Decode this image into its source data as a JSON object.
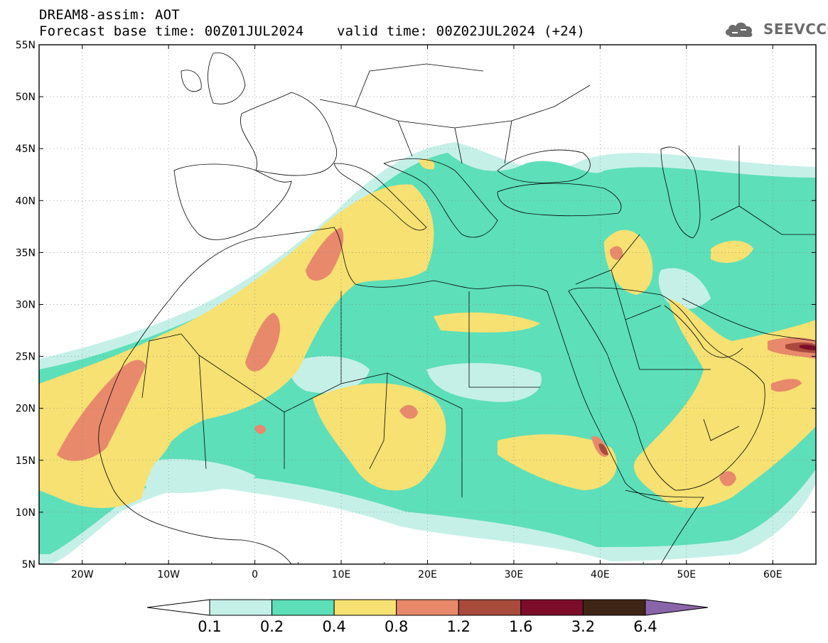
{
  "header": {
    "title_line1": "DREAM8-assim: AOT",
    "base_time_label": "Forecast base time: 00Z01JUL2024",
    "valid_time_label": "valid time: 00Z02JUL2024 (+24)",
    "logo_text": "SEEVCCC"
  },
  "map": {
    "lon_range": [
      -25,
      65
    ],
    "lat_range": [
      5,
      55
    ],
    "lon_ticks": [
      {
        "value": -20,
        "label": "20W"
      },
      {
        "value": -10,
        "label": "10W"
      },
      {
        "value": 0,
        "label": "0"
      },
      {
        "value": 10,
        "label": "10E"
      },
      {
        "value": 20,
        "label": "20E"
      },
      {
        "value": 30,
        "label": "30E"
      },
      {
        "value": 40,
        "label": "40E"
      },
      {
        "value": 50,
        "label": "50E"
      },
      {
        "value": 60,
        "label": "60E"
      }
    ],
    "lat_ticks": [
      {
        "value": 55,
        "label": "55N"
      },
      {
        "value": 50,
        "label": "50N"
      },
      {
        "value": 45,
        "label": "45N"
      },
      {
        "value": 40,
        "label": "40N"
      },
      {
        "value": 35,
        "label": "35N"
      },
      {
        "value": 30,
        "label": "30N"
      },
      {
        "value": 25,
        "label": "25N"
      },
      {
        "value": 20,
        "label": "20N"
      },
      {
        "value": 15,
        "label": "15N"
      },
      {
        "value": 10,
        "label": "10N"
      },
      {
        "value": 5,
        "label": "5N"
      }
    ],
    "grid": "dotted"
  },
  "colorbar": {
    "bins": [
      {
        "from": 0.1,
        "to": 0.2,
        "color": "#c5f0e8"
      },
      {
        "from": 0.2,
        "to": 0.4,
        "color": "#5ddfb9"
      },
      {
        "from": 0.4,
        "to": 0.8,
        "color": "#f6e172"
      },
      {
        "from": 0.8,
        "to": 1.2,
        "color": "#e8896b"
      },
      {
        "from": 1.2,
        "to": 1.6,
        "color": "#a84a3c"
      },
      {
        "from": 1.6,
        "to": 3.2,
        "color": "#7c0d2a"
      },
      {
        "from": 3.2,
        "to": 6.4,
        "color": "#3e2515"
      }
    ],
    "under_color": "#ffffff",
    "over_color": "#8a64a8",
    "labels": [
      "0.1",
      "0.2",
      "0.4",
      "0.8",
      "1.2",
      "1.6",
      "3.2",
      "6.4"
    ]
  }
}
